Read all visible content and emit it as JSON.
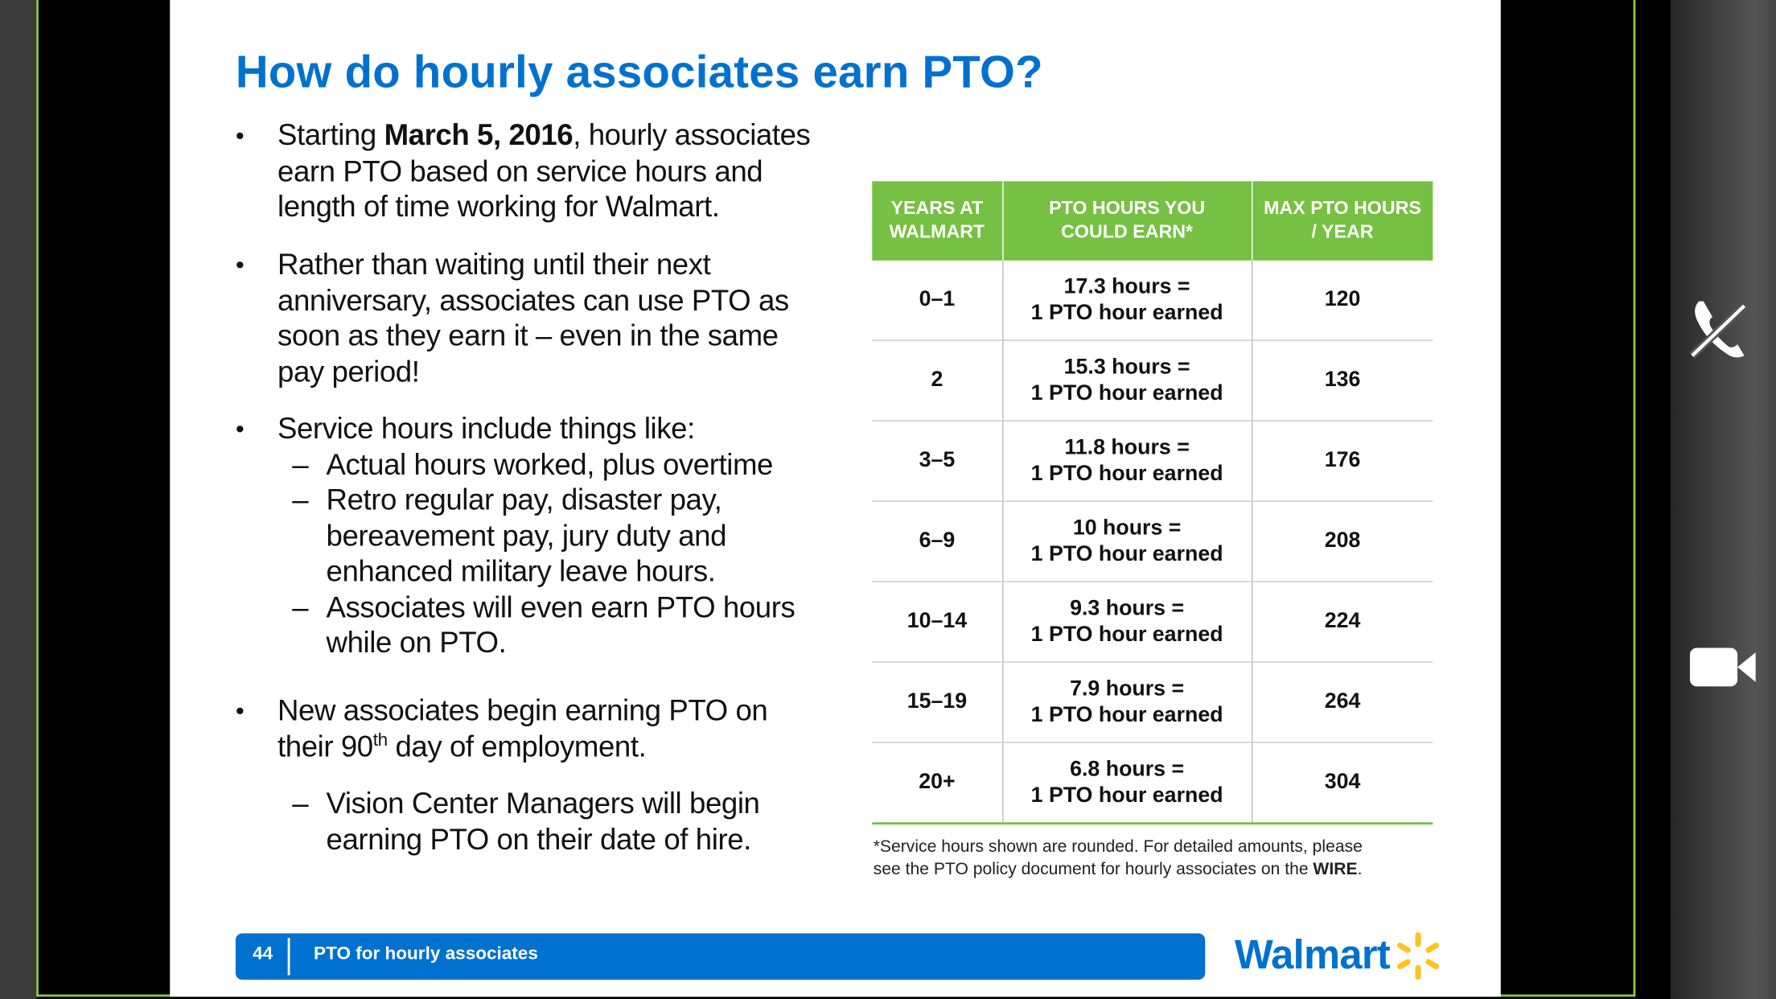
{
  "title": "How do hourly associates earn PTO?",
  "bullet1": {
    "before": "Starting ",
    "date": "March 5, 2016",
    "after": ", hourly associates",
    "rest": [
      "earn PTO based on service hours and",
      "length of time working for Walmart."
    ]
  },
  "bullet2": [
    "Rather than waiting until their next",
    "anniversary, associates can use PTO as",
    "soon as they earn it – even in the same",
    "pay period!"
  ],
  "bullet3": {
    "text": "Service hours include things like:",
    "subs": [
      [
        "Actual hours worked, plus overtime"
      ],
      [
        "Retro regular pay, disaster pay,",
        "bereavement pay, jury duty and",
        "enhanced military leave hours."
      ],
      [
        "Associates will even earn PTO hours",
        "while on PTO."
      ]
    ]
  },
  "bullet4": {
    "line1": "New associates begin earning PTO on",
    "before": "their 90",
    "sup": "th",
    "after": " day of employment.",
    "sub": [
      "Vision Center Managers will begin",
      "earning PTO on their date of hire."
    ]
  },
  "table": {
    "headers": [
      [
        "YEARS AT",
        "WALMART"
      ],
      [
        "PTO HOURS YOU",
        "COULD EARN*"
      ],
      [
        "MAX PTO HOURS",
        "/ YEAR"
      ]
    ],
    "rows": [
      [
        "0–1",
        "17.3 hours =",
        "1 PTO hour earned",
        "120"
      ],
      [
        "2",
        "15.3 hours =",
        "1 PTO hour earned",
        "136"
      ],
      [
        "3–5",
        "11.8 hours =",
        "1 PTO hour earned",
        "176"
      ],
      [
        "6–9",
        "10 hours =",
        "1 PTO hour earned",
        "208"
      ],
      [
        "10–14",
        "9.3 hours =",
        "1 PTO hour earned",
        "224"
      ],
      [
        "15–19",
        "7.9 hours =",
        "1 PTO hour earned",
        "264"
      ],
      [
        "20+",
        "6.8 hours =",
        "1 PTO hour earned",
        "304"
      ]
    ]
  },
  "footnote": {
    "line1": "*Service hours shown are rounded. For detailed amounts, please",
    "line2": "see the PTO policy document for hourly associates on the ",
    "bold": "WIRE",
    "end": "."
  },
  "footer": {
    "page": "44",
    "text": "PTO for hourly associates",
    "logo": "Walmart"
  }
}
